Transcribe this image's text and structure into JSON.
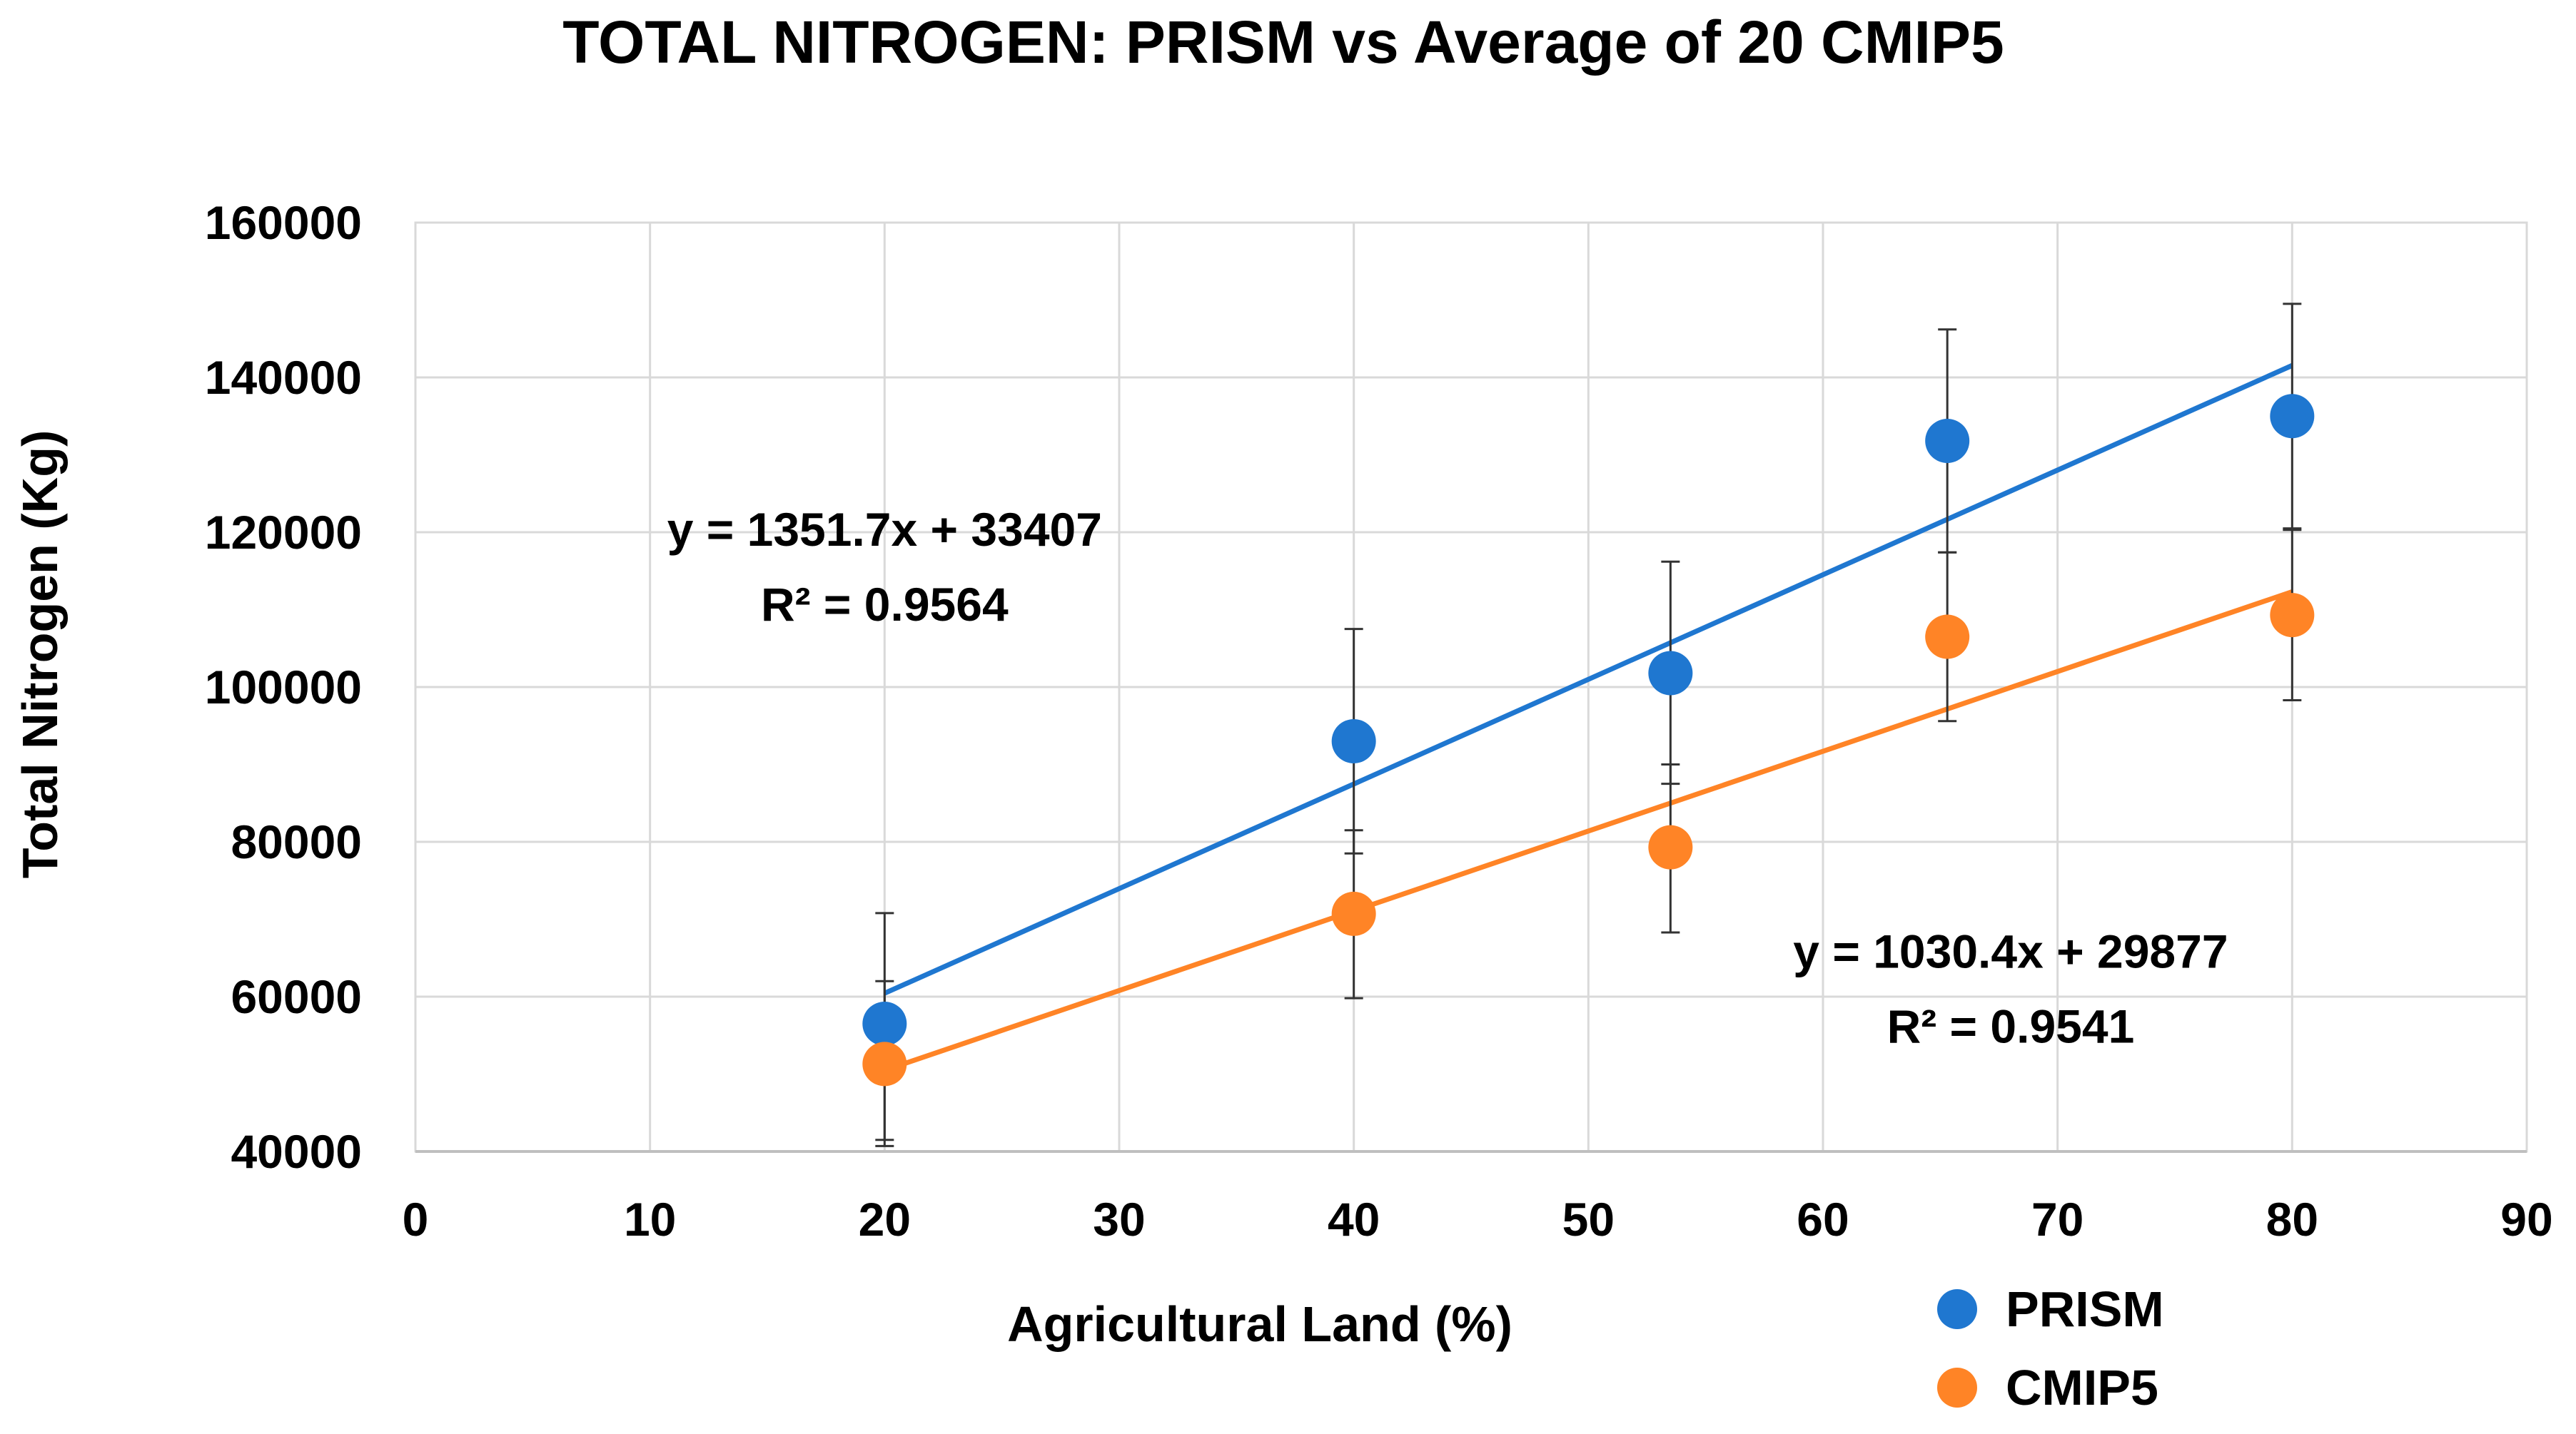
{
  "chart_data": {
    "type": "scatter",
    "title": "TOTAL NITROGEN: PRISM vs Average of 20 CMIP5",
    "xlabel": "Agricultural Land (%)",
    "ylabel": "Total Nitrogen (Kg)",
    "xlim": [
      0,
      90
    ],
    "ylim": [
      40000,
      160000
    ],
    "x_ticks": [
      0,
      10,
      20,
      30,
      40,
      50,
      60,
      70,
      80,
      90
    ],
    "y_ticks": [
      40000,
      60000,
      80000,
      100000,
      120000,
      140000,
      160000
    ],
    "x_tick_labels": [
      "0",
      "10",
      "20",
      "30",
      "40",
      "50",
      "60",
      "70",
      "80",
      "90"
    ],
    "y_tick_labels": [
      "40000",
      "60000",
      "80000",
      "100000",
      "120000",
      "140000",
      "160000"
    ],
    "grid": true,
    "legend_position": "bottom-right",
    "series": [
      {
        "name": "PRISM",
        "color": "#1f77d0",
        "points": [
          {
            "x": 20,
            "y": 56500,
            "err_low": 41500,
            "err_high": 70800
          },
          {
            "x": 40,
            "y": 93000,
            "err_low": 78500,
            "err_high": 107500
          },
          {
            "x": 53.5,
            "y": 101800,
            "err_low": 87500,
            "err_high": 116200
          },
          {
            "x": 65.3,
            "y": 131800,
            "err_low": 117400,
            "err_high": 146200
          },
          {
            "x": 80,
            "y": 135000,
            "err_low": 120500,
            "err_high": 149500
          }
        ],
        "trendline": {
          "slope": 1351.7,
          "intercept": 33407,
          "x_range": [
            20,
            80
          ],
          "equation": "y = 1351.7x + 33407",
          "r2": "R² = 0.9564"
        }
      },
      {
        "name": "CMIP5",
        "color": "#ff8426",
        "points": [
          {
            "x": 20,
            "y": 51300,
            "err_low": 40700,
            "err_high": 62000
          },
          {
            "x": 40,
            "y": 70700,
            "err_low": 59800,
            "err_high": 81500
          },
          {
            "x": 53.5,
            "y": 79300,
            "err_low": 68300,
            "err_high": 90000
          },
          {
            "x": 65.3,
            "y": 106500,
            "err_low": 95600,
            "err_high": 117400
          },
          {
            "x": 80,
            "y": 109300,
            "err_low": 98300,
            "err_high": 120300
          }
        ],
        "trendline": {
          "slope": 1030.4,
          "intercept": 29877,
          "x_range": [
            20,
            80
          ],
          "equation": "y = 1030.4x + 29877",
          "r2": "R² = 0.9541"
        }
      }
    ],
    "annotations": [
      {
        "series": "PRISM",
        "lines": [
          "y = 1351.7x + 33407",
          "R² = 0.9564"
        ],
        "anchor_x": 20,
        "anchor_y": 121000
      },
      {
        "series": "CMIP5",
        "lines": [
          "y = 1030.4x + 29877",
          "R² = 0.9541"
        ],
        "anchor_x": 68,
        "anchor_y": 66500
      }
    ]
  }
}
